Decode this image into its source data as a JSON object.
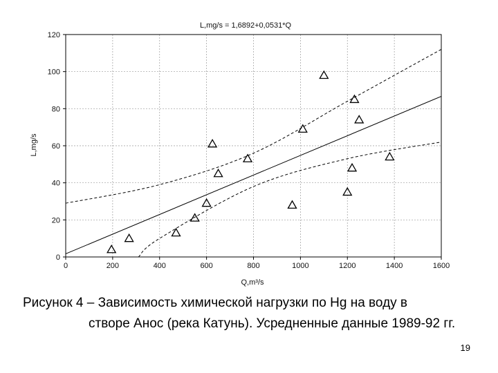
{
  "chart_data": {
    "type": "scatter",
    "title": "L,mg/s = 1,6892+0,0531*Q",
    "xlabel": "Q,m³/s",
    "ylabel": "L,mg/s",
    "xlim": [
      0,
      1600
    ],
    "ylim": [
      0,
      120
    ],
    "x_ticks": [
      "0",
      "200",
      "400",
      "600",
      "800",
      "1000",
      "1200",
      "1400",
      "1600"
    ],
    "y_ticks": [
      "0",
      "20",
      "40",
      "60",
      "80",
      "100",
      "120"
    ],
    "grid": true,
    "points": [
      {
        "x": 195,
        "y": 4
      },
      {
        "x": 270,
        "y": 10
      },
      {
        "x": 470,
        "y": 13
      },
      {
        "x": 550,
        "y": 21
      },
      {
        "x": 600,
        "y": 29
      },
      {
        "x": 625,
        "y": 61
      },
      {
        "x": 650,
        "y": 45
      },
      {
        "x": 775,
        "y": 53
      },
      {
        "x": 965,
        "y": 28
      },
      {
        "x": 1010,
        "y": 69
      },
      {
        "x": 1100,
        "y": 98
      },
      {
        "x": 1200,
        "y": 35
      },
      {
        "x": 1220,
        "y": 48
      },
      {
        "x": 1230,
        "y": 85
      },
      {
        "x": 1250,
        "y": 74
      },
      {
        "x": 1380,
        "y": 54
      }
    ],
    "regression": {
      "intercept": 1.6892,
      "slope": 0.0531
    },
    "confidence_band": {
      "upper": [
        [
          0,
          29
        ],
        [
          400,
          39
        ],
        [
          800,
          56
        ],
        [
          1200,
          84
        ],
        [
          1600,
          112
        ]
      ],
      "lower": [
        [
          310,
          0
        ],
        [
          400,
          10
        ],
        [
          800,
          38
        ],
        [
          1200,
          53
        ],
        [
          1600,
          62
        ]
      ]
    }
  },
  "caption": {
    "line1": "Рисунок 4 – Зависимость химической нагрузки по Hg на воду в",
    "line2": "створе Анос (река Катунь). Усредненные данные 1989-92 гг."
  },
  "page_number": "19"
}
